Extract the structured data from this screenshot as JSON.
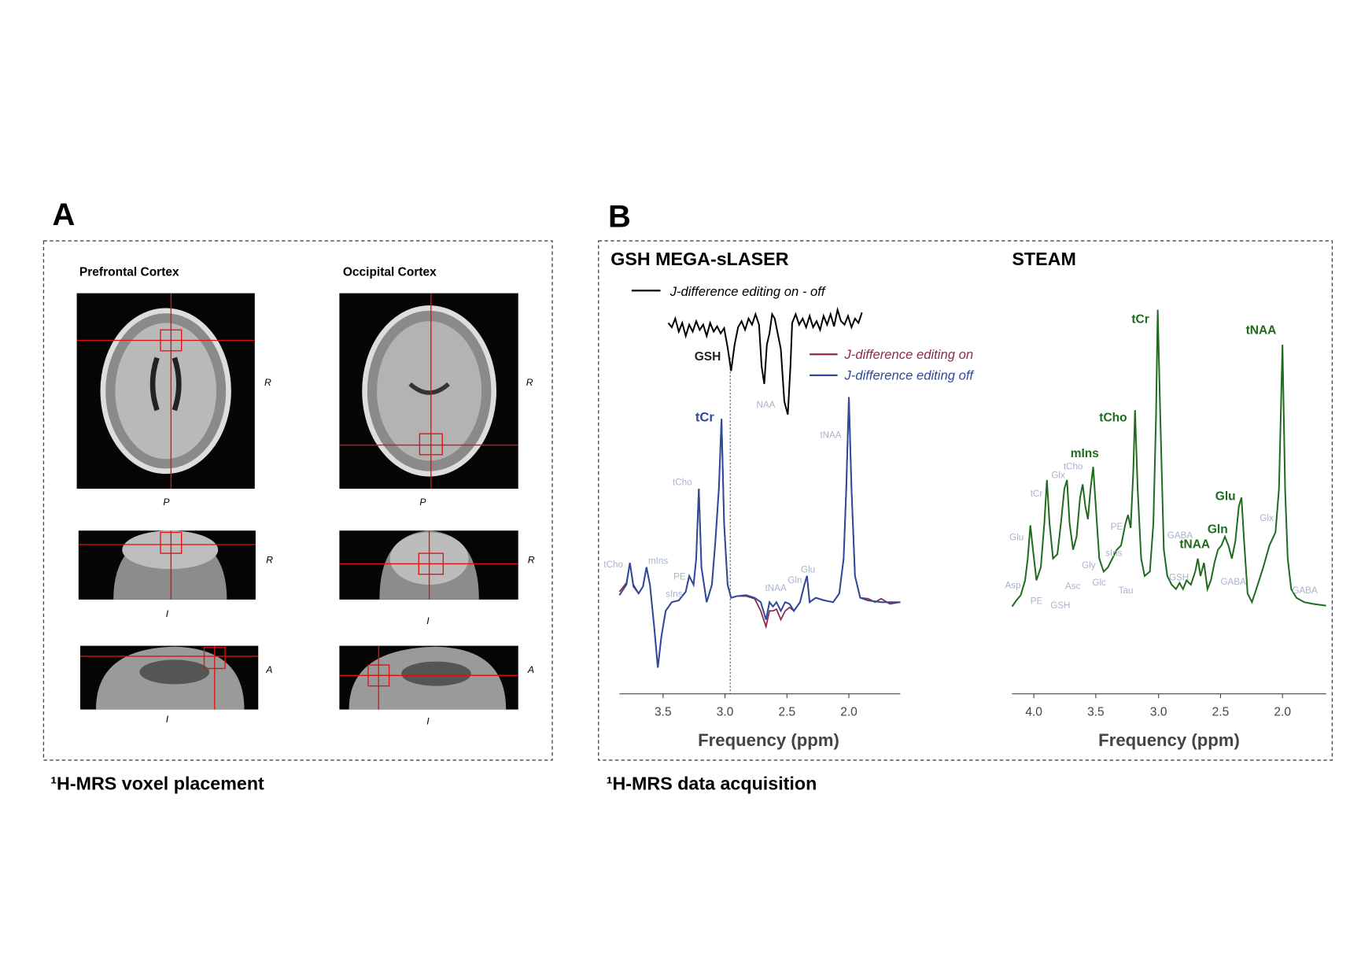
{
  "panel_a": {
    "label": "A",
    "caption": "¹H-MRS voxel placement",
    "columns": [
      "Prefrontal Cortex",
      "Occipital Cortex"
    ],
    "orientation": [
      [
        "R",
        "P",
        "R",
        "I",
        "A",
        "I"
      ],
      [
        "R",
        "P",
        "R",
        "I",
        "A",
        "I"
      ]
    ]
  },
  "panel_b": {
    "label": "B",
    "caption": "¹H-MRS data acquisition",
    "left": {
      "title": "GSH MEGA-sLASER",
      "legend": [
        "J-difference editing on - off",
        "J-difference editing on",
        "J-difference editing off"
      ],
      "major_peaks": [
        "GSH",
        "tCr"
      ],
      "minor_peaks": [
        "tCho",
        "mIns",
        "PE",
        "sIns",
        "tCho",
        "NAA",
        "tNAA",
        "Gln",
        "Glu",
        "tNAA"
      ],
      "ticks": [
        "3.5",
        "3.0",
        "2.5",
        "2.0"
      ],
      "xlabel": "Frequency (ppm)"
    },
    "right": {
      "title": "STEAM",
      "major_peaks": [
        "tCr",
        "tNAA",
        "tCho",
        "mIns",
        "Glu",
        "Gln",
        "tNAA"
      ],
      "minor_peaks": [
        "Glu",
        "tCr",
        "Glx",
        "tCho",
        "Asp",
        "PE",
        "GSH",
        "Asc",
        "Gly",
        "PE",
        "sIns",
        "Glc",
        "Tau",
        "GABA",
        "GSH",
        "GABA",
        "Glx",
        "GABA"
      ],
      "ticks": [
        "4.0",
        "3.5",
        "3.0",
        "2.5",
        "2.0"
      ],
      "xlabel": "Frequency (ppm)"
    }
  }
}
